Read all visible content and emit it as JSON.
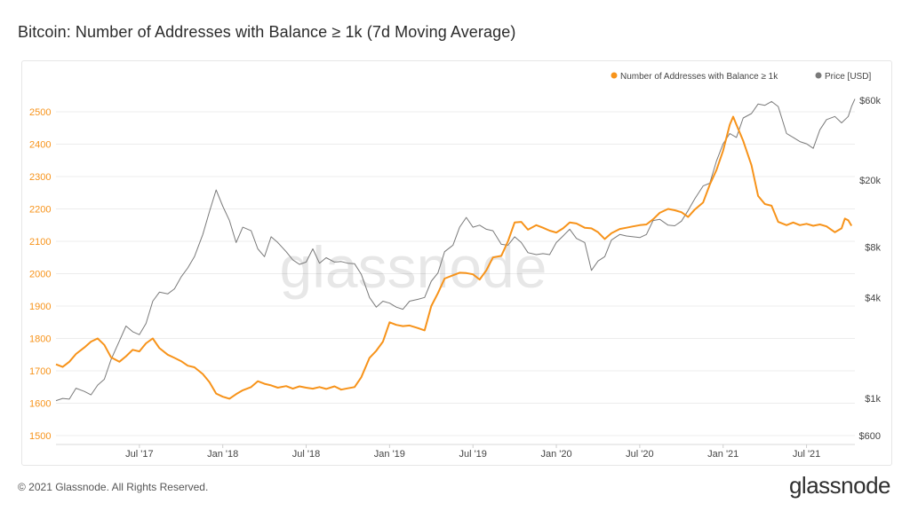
{
  "page": {
    "title": "Bitcoin: Number of Addresses with Balance ≥ 1k (7d Moving Average)",
    "copyright": "© 2021 Glassnode. All Rights Reserved.",
    "brand": "glassnode",
    "watermark": "glassnode"
  },
  "chart_data": {
    "type": "line",
    "title": "Bitcoin: Number of Addresses with Balance ≥ 1k (7d Moving Average)",
    "x_range": [
      2017.0,
      2021.79
    ],
    "x_ticks": [
      {
        "label": "Jul '17",
        "t": 2017.5
      },
      {
        "label": "Jan '18",
        "t": 2018.0
      },
      {
        "label": "Jul '18",
        "t": 2018.5
      },
      {
        "label": "Jan '19",
        "t": 2019.0
      },
      {
        "label": "Jul '19",
        "t": 2019.5
      },
      {
        "label": "Jan '20",
        "t": 2020.0
      },
      {
        "label": "Jul '20",
        "t": 2020.5
      },
      {
        "label": "Jan '21",
        "t": 2021.0
      },
      {
        "label": "Jul '21",
        "t": 2021.5
      }
    ],
    "y_left": {
      "min": 1500,
      "max": 2500,
      "ticks": [
        1500,
        1600,
        1700,
        1800,
        1900,
        2000,
        2100,
        2200,
        2300,
        2400,
        2500
      ],
      "color": "#f7931a"
    },
    "y_right": {
      "scale": "log",
      "min": 600,
      "max": 60000,
      "ticks": [
        {
          "label": "$600",
          "value": 600
        },
        {
          "label": "$1k",
          "value": 1000
        },
        {
          "label": "$4k",
          "value": 4000
        },
        {
          "label": "$8k",
          "value": 8000
        },
        {
          "label": "$20k",
          "value": 20000
        },
        {
          "label": "$60k",
          "value": 60000
        }
      ]
    },
    "legend": [
      "Number of Addresses with Balance ≥ 1k",
      "Price [USD]"
    ],
    "series": [
      {
        "name": "Number of Addresses with Balance ≥ 1k",
        "axis": "left",
        "color": "#f7931a",
        "points": [
          [
            2017.0,
            1720
          ],
          [
            2017.04,
            1712
          ],
          [
            2017.08,
            1728
          ],
          [
            2017.12,
            1752
          ],
          [
            2017.17,
            1772
          ],
          [
            2017.21,
            1790
          ],
          [
            2017.25,
            1800
          ],
          [
            2017.29,
            1780
          ],
          [
            2017.33,
            1742
          ],
          [
            2017.38,
            1728
          ],
          [
            2017.42,
            1745
          ],
          [
            2017.46,
            1765
          ],
          [
            2017.5,
            1760
          ],
          [
            2017.54,
            1785
          ],
          [
            2017.58,
            1800
          ],
          [
            2017.62,
            1770
          ],
          [
            2017.67,
            1750
          ],
          [
            2017.71,
            1740
          ],
          [
            2017.75,
            1730
          ],
          [
            2017.79,
            1716
          ],
          [
            2017.83,
            1711
          ],
          [
            2017.88,
            1690
          ],
          [
            2017.92,
            1665
          ],
          [
            2017.96,
            1630
          ],
          [
            2018.0,
            1620
          ],
          [
            2018.04,
            1614
          ],
          [
            2018.08,
            1628
          ],
          [
            2018.12,
            1640
          ],
          [
            2018.17,
            1650
          ],
          [
            2018.21,
            1668
          ],
          [
            2018.25,
            1660
          ],
          [
            2018.29,
            1655
          ],
          [
            2018.33,
            1648
          ],
          [
            2018.38,
            1653
          ],
          [
            2018.42,
            1645
          ],
          [
            2018.46,
            1652
          ],
          [
            2018.5,
            1648
          ],
          [
            2018.54,
            1645
          ],
          [
            2018.58,
            1650
          ],
          [
            2018.62,
            1644
          ],
          [
            2018.67,
            1652
          ],
          [
            2018.71,
            1642
          ],
          [
            2018.75,
            1646
          ],
          [
            2018.79,
            1650
          ],
          [
            2018.83,
            1680
          ],
          [
            2018.88,
            1740
          ],
          [
            2018.92,
            1762
          ],
          [
            2018.96,
            1790
          ],
          [
            2019.0,
            1850
          ],
          [
            2019.04,
            1842
          ],
          [
            2019.08,
            1838
          ],
          [
            2019.12,
            1840
          ],
          [
            2019.17,
            1832
          ],
          [
            2019.21,
            1825
          ],
          [
            2019.25,
            1900
          ],
          [
            2019.29,
            1940
          ],
          [
            2019.33,
            1985
          ],
          [
            2019.38,
            1995
          ],
          [
            2019.42,
            2003
          ],
          [
            2019.46,
            2002
          ],
          [
            2019.5,
            1998
          ],
          [
            2019.54,
            1982
          ],
          [
            2019.58,
            2010
          ],
          [
            2019.62,
            2050
          ],
          [
            2019.67,
            2055
          ],
          [
            2019.71,
            2100
          ],
          [
            2019.75,
            2158
          ],
          [
            2019.79,
            2160
          ],
          [
            2019.83,
            2136
          ],
          [
            2019.88,
            2150
          ],
          [
            2019.92,
            2142
          ],
          [
            2019.96,
            2133
          ],
          [
            2020.0,
            2127
          ],
          [
            2020.04,
            2140
          ],
          [
            2020.08,
            2158
          ],
          [
            2020.12,
            2155
          ],
          [
            2020.17,
            2142
          ],
          [
            2020.21,
            2140
          ],
          [
            2020.25,
            2128
          ],
          [
            2020.29,
            2107
          ],
          [
            2020.33,
            2125
          ],
          [
            2020.38,
            2138
          ],
          [
            2020.42,
            2142
          ],
          [
            2020.46,
            2146
          ],
          [
            2020.5,
            2150
          ],
          [
            2020.54,
            2152
          ],
          [
            2020.58,
            2168
          ],
          [
            2020.62,
            2188
          ],
          [
            2020.67,
            2200
          ],
          [
            2020.71,
            2196
          ],
          [
            2020.75,
            2190
          ],
          [
            2020.79,
            2175
          ],
          [
            2020.83,
            2198
          ],
          [
            2020.88,
            2220
          ],
          [
            2020.92,
            2275
          ],
          [
            2020.96,
            2320
          ],
          [
            2021.0,
            2380
          ],
          [
            2021.04,
            2460
          ],
          [
            2021.06,
            2485
          ],
          [
            2021.08,
            2460
          ],
          [
            2021.12,
            2410
          ],
          [
            2021.17,
            2335
          ],
          [
            2021.21,
            2240
          ],
          [
            2021.25,
            2215
          ],
          [
            2021.29,
            2210
          ],
          [
            2021.33,
            2160
          ],
          [
            2021.38,
            2150
          ],
          [
            2021.42,
            2158
          ],
          [
            2021.46,
            2150
          ],
          [
            2021.5,
            2154
          ],
          [
            2021.54,
            2148
          ],
          [
            2021.58,
            2152
          ],
          [
            2021.62,
            2146
          ],
          [
            2021.67,
            2128
          ],
          [
            2021.71,
            2140
          ],
          [
            2021.73,
            2170
          ],
          [
            2021.75,
            2165
          ],
          [
            2021.77,
            2148
          ]
        ]
      },
      {
        "name": "Price [USD]",
        "axis": "right",
        "color": "#7a7a7a",
        "points": [
          [
            2017.0,
            970
          ],
          [
            2017.04,
            1000
          ],
          [
            2017.08,
            990
          ],
          [
            2017.12,
            1150
          ],
          [
            2017.17,
            1100
          ],
          [
            2017.21,
            1050
          ],
          [
            2017.25,
            1200
          ],
          [
            2017.29,
            1300
          ],
          [
            2017.33,
            1700
          ],
          [
            2017.38,
            2200
          ],
          [
            2017.42,
            2700
          ],
          [
            2017.46,
            2500
          ],
          [
            2017.5,
            2400
          ],
          [
            2017.54,
            2800
          ],
          [
            2017.58,
            3800
          ],
          [
            2017.62,
            4300
          ],
          [
            2017.67,
            4200
          ],
          [
            2017.71,
            4500
          ],
          [
            2017.75,
            5300
          ],
          [
            2017.79,
            6000
          ],
          [
            2017.83,
            7000
          ],
          [
            2017.88,
            9500
          ],
          [
            2017.92,
            13000
          ],
          [
            2017.96,
            17500
          ],
          [
            2018.0,
            14000
          ],
          [
            2018.04,
            11500
          ],
          [
            2018.08,
            8500
          ],
          [
            2018.12,
            10500
          ],
          [
            2018.17,
            10000
          ],
          [
            2018.21,
            7800
          ],
          [
            2018.25,
            7000
          ],
          [
            2018.29,
            9200
          ],
          [
            2018.33,
            8500
          ],
          [
            2018.38,
            7500
          ],
          [
            2018.42,
            6700
          ],
          [
            2018.46,
            6300
          ],
          [
            2018.5,
            6500
          ],
          [
            2018.54,
            7800
          ],
          [
            2018.58,
            6400
          ],
          [
            2018.62,
            6900
          ],
          [
            2018.67,
            6500
          ],
          [
            2018.71,
            6550
          ],
          [
            2018.75,
            6400
          ],
          [
            2018.79,
            6350
          ],
          [
            2018.83,
            5500
          ],
          [
            2018.88,
            4000
          ],
          [
            2018.92,
            3500
          ],
          [
            2018.96,
            3800
          ],
          [
            2019.0,
            3700
          ],
          [
            2019.04,
            3500
          ],
          [
            2019.08,
            3400
          ],
          [
            2019.12,
            3800
          ],
          [
            2019.17,
            3900
          ],
          [
            2019.21,
            4000
          ],
          [
            2019.25,
            5000
          ],
          [
            2019.29,
            5600
          ],
          [
            2019.33,
            7500
          ],
          [
            2019.38,
            8200
          ],
          [
            2019.42,
            10500
          ],
          [
            2019.46,
            12000
          ],
          [
            2019.5,
            10500
          ],
          [
            2019.54,
            10800
          ],
          [
            2019.58,
            10200
          ],
          [
            2019.62,
            10000
          ],
          [
            2019.67,
            8300
          ],
          [
            2019.71,
            8200
          ],
          [
            2019.75,
            9200
          ],
          [
            2019.79,
            8500
          ],
          [
            2019.83,
            7400
          ],
          [
            2019.88,
            7200
          ],
          [
            2019.92,
            7300
          ],
          [
            2019.96,
            7200
          ],
          [
            2020.0,
            8500
          ],
          [
            2020.04,
            9300
          ],
          [
            2020.08,
            10200
          ],
          [
            2020.12,
            9000
          ],
          [
            2020.17,
            8500
          ],
          [
            2020.21,
            5800
          ],
          [
            2020.25,
            6600
          ],
          [
            2020.29,
            7000
          ],
          [
            2020.33,
            8800
          ],
          [
            2020.38,
            9500
          ],
          [
            2020.42,
            9300
          ],
          [
            2020.46,
            9200
          ],
          [
            2020.5,
            9100
          ],
          [
            2020.54,
            9500
          ],
          [
            2020.58,
            11500
          ],
          [
            2020.62,
            11700
          ],
          [
            2020.67,
            10800
          ],
          [
            2020.71,
            10700
          ],
          [
            2020.75,
            11400
          ],
          [
            2020.79,
            13200
          ],
          [
            2020.83,
            15500
          ],
          [
            2020.88,
            18500
          ],
          [
            2020.92,
            19200
          ],
          [
            2020.96,
            26000
          ],
          [
            2021.0,
            33000
          ],
          [
            2021.04,
            38000
          ],
          [
            2021.08,
            36000
          ],
          [
            2021.12,
            47000
          ],
          [
            2021.17,
            50000
          ],
          [
            2021.21,
            57000
          ],
          [
            2021.25,
            56000
          ],
          [
            2021.29,
            59000
          ],
          [
            2021.33,
            55000
          ],
          [
            2021.38,
            38000
          ],
          [
            2021.42,
            36000
          ],
          [
            2021.46,
            34000
          ],
          [
            2021.5,
            33000
          ],
          [
            2021.54,
            31000
          ],
          [
            2021.58,
            40000
          ],
          [
            2021.62,
            46000
          ],
          [
            2021.67,
            48000
          ],
          [
            2021.71,
            44000
          ],
          [
            2021.75,
            48000
          ],
          [
            2021.77,
            55000
          ],
          [
            2021.79,
            61000
          ]
        ]
      }
    ]
  }
}
